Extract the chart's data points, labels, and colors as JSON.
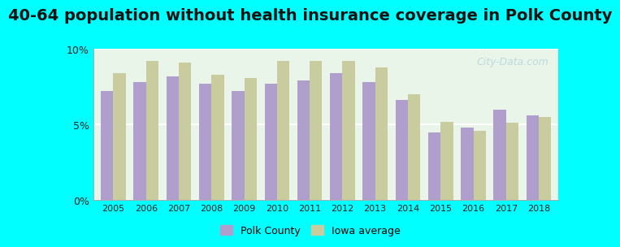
{
  "title": "40-64 population without health insurance coverage in Polk County",
  "years": [
    2005,
    2006,
    2007,
    2008,
    2009,
    2010,
    2011,
    2012,
    2013,
    2014,
    2015,
    2016,
    2017,
    2018
  ],
  "polk_county": [
    7.2,
    7.8,
    8.2,
    7.7,
    7.2,
    7.7,
    7.9,
    8.4,
    7.8,
    6.6,
    4.5,
    4.8,
    6.0,
    5.6
  ],
  "iowa_average": [
    8.4,
    9.2,
    9.1,
    8.3,
    8.1,
    9.2,
    9.2,
    9.2,
    8.8,
    7.0,
    5.2,
    4.6,
    5.1,
    5.5
  ],
  "polk_color": "#b09fcc",
  "iowa_color": "#c8cc9f",
  "bg_color": "#00ffff",
  "plot_bg_top": "#e8f5e8",
  "plot_bg_bottom": "#ffffff",
  "ylim": [
    0,
    10
  ],
  "yticks": [
    0,
    5,
    10
  ],
  "ytick_labels": [
    "0%",
    "5%",
    "10%"
  ],
  "title_fontsize": 14,
  "legend_polk": "Polk County",
  "legend_iowa": "Iowa average",
  "watermark": "City-Data.com"
}
